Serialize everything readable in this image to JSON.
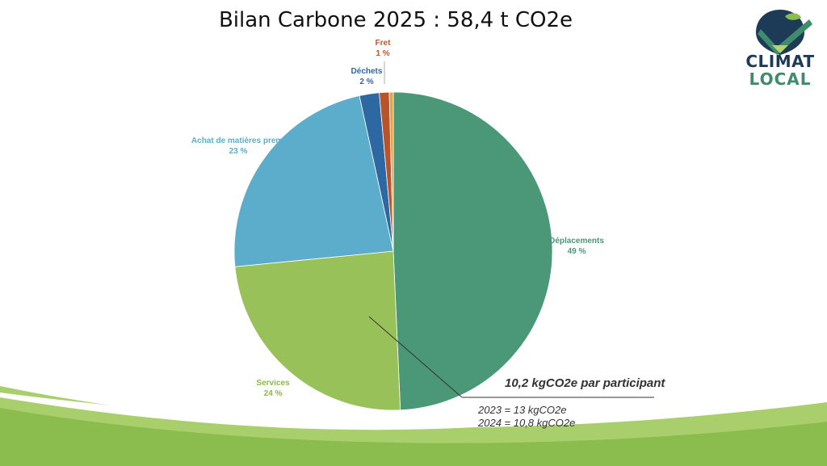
{
  "page": {
    "title": "Bilan Carbone 2025 : 58,4 t CO2e",
    "logo": {
      "line1": "CLIMAT",
      "line2": "LOCAL"
    },
    "note": {
      "main": "10,2 kgCO2e par participant",
      "line1": "2023 = 13 kgCO2e",
      "line2": "2024 = 10,8 kgCO2e"
    }
  },
  "chart_data": {
    "type": "pie",
    "title": "Bilan Carbone 2025 : 58,4 t CO2e",
    "slices": [
      {
        "label": "Déplacements",
        "value": 49,
        "pct_label": "49 %",
        "color": "#4a9878"
      },
      {
        "label": "Services",
        "value": 24,
        "pct_label": "24 %",
        "color": "#98c15a"
      },
      {
        "label": "Achat de matières premi",
        "value": 23,
        "pct_label": "23 %",
        "color": "#5badcb"
      },
      {
        "label": "Déchets",
        "value": 2,
        "pct_label": "2 %",
        "color": "#2e68a2"
      },
      {
        "label": "Fret",
        "value": 1,
        "pct_label": "1 %",
        "color": "#b9532a"
      },
      {
        "label": "",
        "value": 0.4,
        "pct_label": "",
        "color": "#e8a23a"
      }
    ],
    "label_colors": {
      "Déplacements": "#4a9878",
      "Services": "#8bb84c",
      "Achat de matières premi": "#5badcb",
      "Déchets": "#2e68a2",
      "Fret": "#c0572b"
    }
  }
}
